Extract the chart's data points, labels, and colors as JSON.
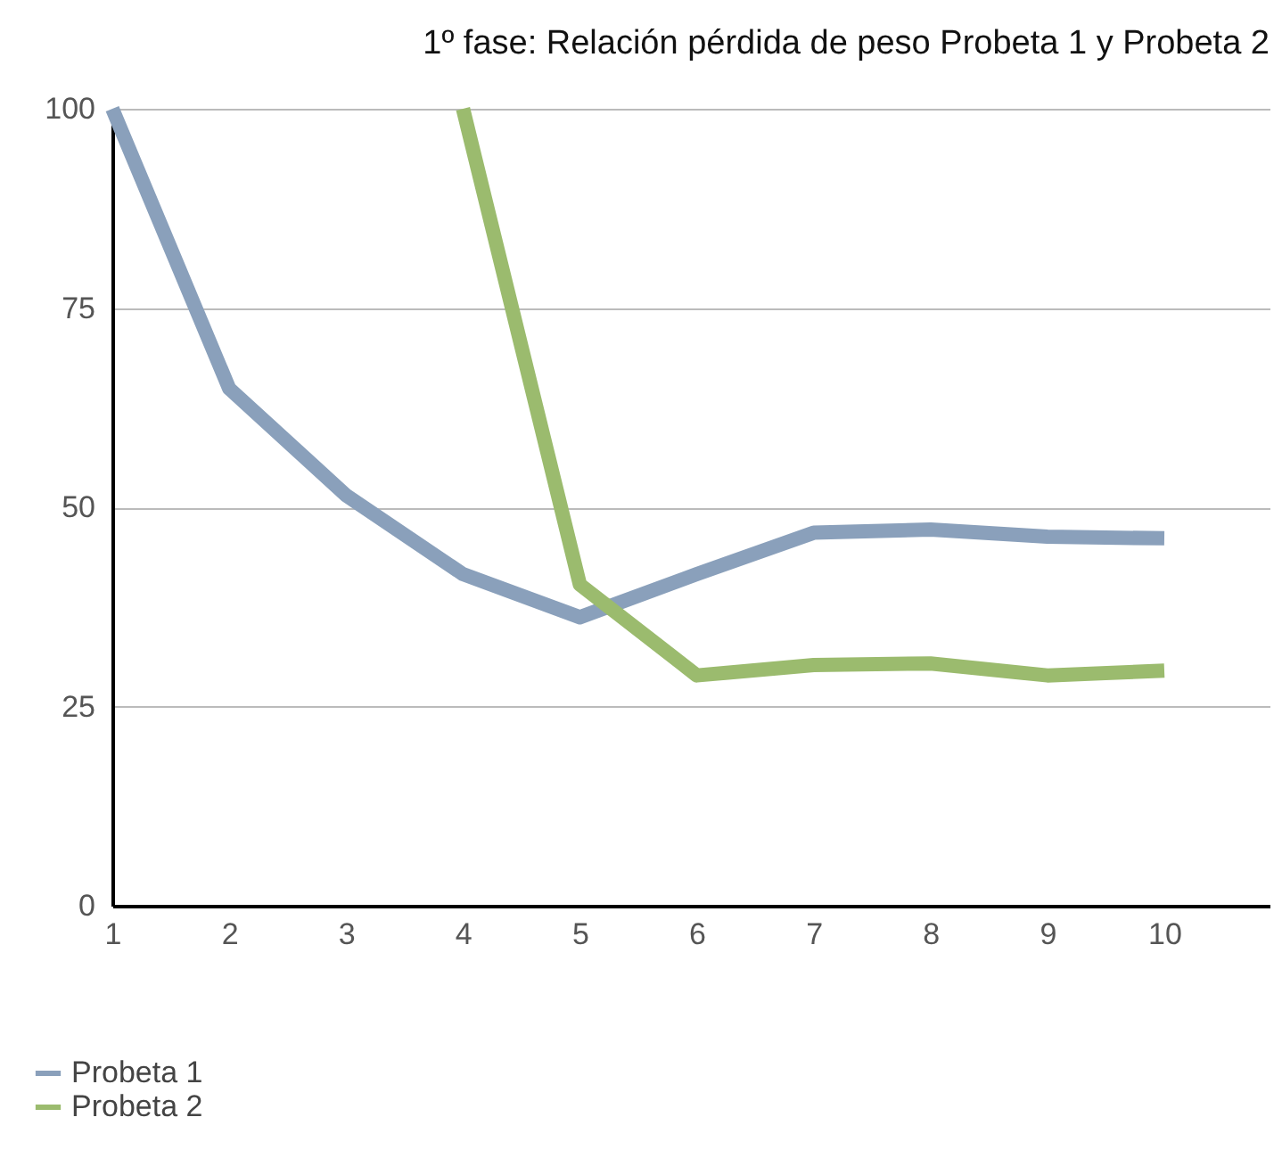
{
  "chart_data": {
    "type": "line",
    "title": "1º  fase: Relación pérdida de peso Probeta 1 y Probeta 2",
    "x": [
      1,
      2,
      3,
      4,
      5,
      6,
      7,
      8,
      9,
      10
    ],
    "series": [
      {
        "name": "Probeta 1",
        "color": "#8aa0bb",
        "values": [
          100,
          64.9,
          51.5,
          41.6,
          36.2,
          41.6,
          46.8,
          47.2,
          46.3,
          46.1
        ]
      },
      {
        "name": "Probeta 2",
        "color": "#9bbb6e",
        "values": [
          null,
          null,
          null,
          100,
          40.3,
          28.9,
          30.2,
          30.4,
          28.9,
          29.5
        ]
      }
    ],
    "xlim": [
      1,
      10.9
    ],
    "xticks": [
      1,
      2,
      3,
      4,
      5,
      6,
      7,
      8,
      9,
      10
    ],
    "ylim": [
      0,
      100
    ],
    "yticks": [
      0,
      25,
      50,
      75,
      100
    ],
    "grid": "y",
    "legend": "bottom left",
    "marker": "none",
    "line_style": "solid"
  }
}
